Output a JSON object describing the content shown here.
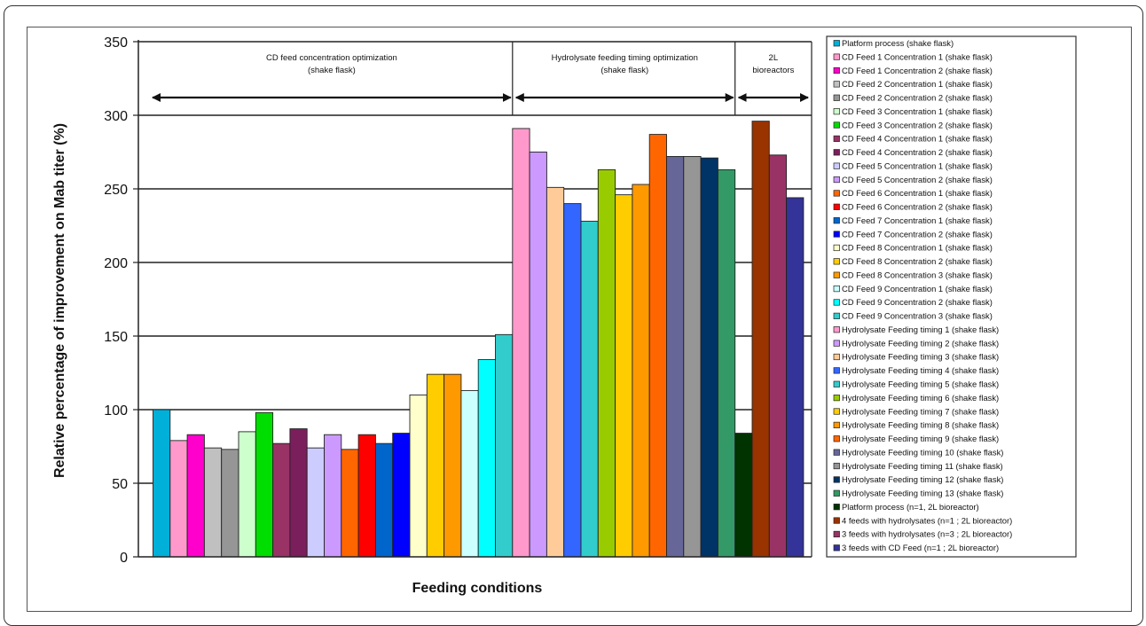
{
  "chart_data": {
    "type": "bar",
    "title": "",
    "xlabel": "Feeding conditions",
    "ylabel": "Relative percentage of improvement on Mab titer (%)",
    "ylim": [
      0,
      350
    ],
    "yticks": [
      0,
      50,
      100,
      150,
      200,
      250,
      300,
      350
    ],
    "grid": "horizontal",
    "legend_position": "right",
    "annotations": [
      {
        "text_lines": [
          "CD feed concentration optimization",
          "(shake flask)"
        ],
        "arrow_from_index": 0,
        "arrow_to_index": 21
      },
      {
        "text_lines": [
          "Hydrolysate feeding timing optimization",
          "(shake flask)"
        ],
        "arrow_from_index": 21,
        "arrow_to_index": 34
      },
      {
        "text_lines": [
          "2L",
          "bioreactors"
        ],
        "arrow_from_index": 34,
        "arrow_to_index": 38
      }
    ],
    "series": [
      {
        "name": "Platform process (shake flask)",
        "value": 100,
        "color": "#00b0d8"
      },
      {
        "name": "CD Feed 1 Concentration 1 (shake flask)",
        "value": 79,
        "color": "#ff99cc"
      },
      {
        "name": "CD Feed 1 Concentration 2 (shake flask)",
        "value": 83,
        "color": "#ff00cc"
      },
      {
        "name": "CD Feed 2 Concentration 1 (shake flask)",
        "value": 74,
        "color": "#c0c0c0"
      },
      {
        "name": "CD Feed 2 Concentration 2 (shake flask)",
        "value": 73,
        "color": "#969696"
      },
      {
        "name": "CD Feed 3 Concentration 1 (shake flask)",
        "value": 85,
        "color": "#ccffcc"
      },
      {
        "name": "CD Feed 3 Concentration 2 (shake flask)",
        "value": 98,
        "color": "#00dd00"
      },
      {
        "name": "CD Feed 4 Concentration 1 (shake flask)",
        "value": 77,
        "color": "#993366"
      },
      {
        "name": "CD Feed 4 Concentration 2 (shake flask)",
        "value": 87,
        "color": "#7a1f5c"
      },
      {
        "name": "CD Feed 5 Concentration 1 (shake flask)",
        "value": 74,
        "color": "#ccccff"
      },
      {
        "name": "CD Feed 5 Concentration 2 (shake flask)",
        "value": 83,
        "color": "#cc99ff"
      },
      {
        "name": "CD Feed 6 Concentration 1 (shake flask)",
        "value": 73,
        "color": "#ff6600"
      },
      {
        "name": "CD Feed 6 Concentration 2 (shake flask)",
        "value": 83,
        "color": "#ff0000"
      },
      {
        "name": "CD Feed 7 Concentration 1 (shake flask)",
        "value": 77,
        "color": "#0066cc"
      },
      {
        "name": "CD Feed 7 Concentration 2 (shake flask)",
        "value": 84,
        "color": "#0000ff"
      },
      {
        "name": "CD Feed 8 Concentration 1 (shake flask)",
        "value": 110,
        "color": "#ffffcc"
      },
      {
        "name": "CD Feed 8 Concentration 2 (shake flask)",
        "value": 124,
        "color": "#ffcc00"
      },
      {
        "name": "CD Feed 8 Concentration 3 (shake flask)",
        "value": 124,
        "color": "#ff9900"
      },
      {
        "name": "CD Feed 9 Concentration 1 (shake flask)",
        "value": 113,
        "color": "#ccffff"
      },
      {
        "name": "CD Feed 9 Concentration 2 (shake flask)",
        "value": 134,
        "color": "#00ffff"
      },
      {
        "name": "CD Feed 9 Concentration 3 (shake flask)",
        "value": 151,
        "color": "#33cccc"
      },
      {
        "name": "Hydrolysate Feeding timing 1 (shake flask)",
        "value": 291,
        "color": "#ff99cc"
      },
      {
        "name": "Hydrolysate Feeding timing 2 (shake flask)",
        "value": 275,
        "color": "#cc99ff"
      },
      {
        "name": "Hydrolysate Feeding timing 3 (shake flask)",
        "value": 251,
        "color": "#ffcc99"
      },
      {
        "name": "Hydrolysate Feeding timing 4 (shake flask)",
        "value": 240,
        "color": "#3366ff"
      },
      {
        "name": "Hydrolysate Feeding timing 5 (shake flask)",
        "value": 228,
        "color": "#33cccc"
      },
      {
        "name": "Hydrolysate Feeding timing 6 (shake flask)",
        "value": 263,
        "color": "#99cc00"
      },
      {
        "name": "Hydrolysate Feeding timing 7 (shake flask)",
        "value": 246,
        "color": "#ffcc00"
      },
      {
        "name": "Hydrolysate Feeding timing 8 (shake flask)",
        "value": 253,
        "color": "#ff9900"
      },
      {
        "name": "Hydrolysate Feeding timing 9 (shake flask)",
        "value": 287,
        "color": "#ff6600"
      },
      {
        "name": "Hydrolysate Feeding timing 10 (shake flask)",
        "value": 272,
        "color": "#666699"
      },
      {
        "name": "Hydrolysate Feeding timing 11 (shake flask)",
        "value": 272,
        "color": "#969696"
      },
      {
        "name": "Hydrolysate Feeding timing 12 (shake flask)",
        "value": 271,
        "color": "#003366"
      },
      {
        "name": "Hydrolysate Feeding timing 13 (shake flask)",
        "value": 263,
        "color": "#339966"
      },
      {
        "name": "Platform process (n=1, 2L bioreactor)",
        "value": 84,
        "color": "#003300"
      },
      {
        "name": "4 feeds with hydrolysates (n=1 ; 2L bioreactor)",
        "value": 296,
        "color": "#993300"
      },
      {
        "name": "3 feeds with hydrolysates (n=3 ; 2L bioreactor)",
        "value": 273,
        "color": "#993366"
      },
      {
        "name": "3 feeds with CD Feed (n=1 ; 2L bioreactor)",
        "value": 244,
        "color": "#333399"
      }
    ]
  }
}
